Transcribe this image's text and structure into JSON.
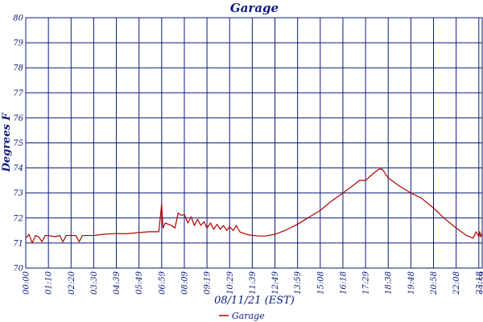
{
  "chart_data": {
    "type": "line",
    "title": "Garage",
    "xlabel": "08/11/21 (EST)",
    "ylabel": "Degrees F",
    "ylim": [
      70,
      80
    ],
    "yticks": [
      "70",
      "71",
      "72",
      "73",
      "74",
      "75",
      "76",
      "77",
      "78",
      "79",
      "80"
    ],
    "xticks": [
      "00:00",
      "01:10",
      "02:20",
      "03:30",
      "04:39",
      "05:49",
      "06:59",
      "08:09",
      "09:19",
      "10:29",
      "11:39",
      "12:49",
      "13:59",
      "15:08",
      "16:18",
      "17:29",
      "18:38",
      "19:48",
      "20:58",
      "22:08",
      "23:18",
      "23:59"
    ],
    "grid": true,
    "legend_position": "bottom-center",
    "series": [
      {
        "name": "Garage",
        "color": "#b00000",
        "points": [
          [
            "00:00",
            71.2
          ],
          [
            "00:10",
            71.35
          ],
          [
            "00:20",
            71.0
          ],
          [
            "00:30",
            71.3
          ],
          [
            "00:40",
            71.25
          ],
          [
            "00:50",
            71.05
          ],
          [
            "01:00",
            71.3
          ],
          [
            "01:10",
            71.3
          ],
          [
            "01:30",
            71.25
          ],
          [
            "01:45",
            71.3
          ],
          [
            "01:55",
            71.05
          ],
          [
            "02:05",
            71.3
          ],
          [
            "02:20",
            71.3
          ],
          [
            "02:35",
            71.3
          ],
          [
            "02:45",
            71.05
          ],
          [
            "02:55",
            71.3
          ],
          [
            "03:10",
            71.3
          ],
          [
            "03:30",
            71.3
          ],
          [
            "04:00",
            71.35
          ],
          [
            "04:39",
            71.38
          ],
          [
            "05:10",
            71.37
          ],
          [
            "05:49",
            71.42
          ],
          [
            "06:20",
            71.45
          ],
          [
            "06:50",
            71.45
          ],
          [
            "06:59",
            72.55
          ],
          [
            "07:03",
            71.6
          ],
          [
            "07:10",
            71.8
          ],
          [
            "07:20",
            71.75
          ],
          [
            "07:30",
            71.7
          ],
          [
            "07:40",
            71.6
          ],
          [
            "07:50",
            72.2
          ],
          [
            "08:00",
            72.1
          ],
          [
            "08:09",
            72.15
          ],
          [
            "08:20",
            71.8
          ],
          [
            "08:30",
            72.05
          ],
          [
            "08:40",
            71.7
          ],
          [
            "08:50",
            71.95
          ],
          [
            "09:00",
            71.7
          ],
          [
            "09:10",
            71.85
          ],
          [
            "09:19",
            71.6
          ],
          [
            "09:30",
            71.8
          ],
          [
            "09:40",
            71.55
          ],
          [
            "09:50",
            71.75
          ],
          [
            "10:00",
            71.55
          ],
          [
            "10:10",
            71.7
          ],
          [
            "10:20",
            71.5
          ],
          [
            "10:29",
            71.65
          ],
          [
            "10:40",
            71.5
          ],
          [
            "10:50",
            71.7
          ],
          [
            "11:00",
            71.45
          ],
          [
            "11:20",
            71.35
          ],
          [
            "11:39",
            71.3
          ],
          [
            "12:00",
            71.28
          ],
          [
            "12:20",
            71.28
          ],
          [
            "12:49",
            71.35
          ],
          [
            "13:20",
            71.5
          ],
          [
            "13:59",
            71.75
          ],
          [
            "14:30",
            72.0
          ],
          [
            "15:08",
            72.3
          ],
          [
            "15:40",
            72.65
          ],
          [
            "16:18",
            73.0
          ],
          [
            "16:50",
            73.3
          ],
          [
            "17:10",
            73.5
          ],
          [
            "17:29",
            73.5
          ],
          [
            "17:50",
            73.75
          ],
          [
            "18:10",
            73.95
          ],
          [
            "18:20",
            73.95
          ],
          [
            "18:38",
            73.6
          ],
          [
            "19:10",
            73.3
          ],
          [
            "19:48",
            73.0
          ],
          [
            "20:20",
            72.8
          ],
          [
            "20:58",
            72.4
          ],
          [
            "21:30",
            72.0
          ],
          [
            "22:08",
            71.6
          ],
          [
            "22:40",
            71.3
          ],
          [
            "23:00",
            71.2
          ],
          [
            "23:10",
            71.45
          ],
          [
            "23:18",
            71.25
          ],
          [
            "23:30",
            71.45
          ],
          [
            "23:40",
            71.25
          ],
          [
            "23:59",
            71.4
          ]
        ]
      }
    ]
  }
}
